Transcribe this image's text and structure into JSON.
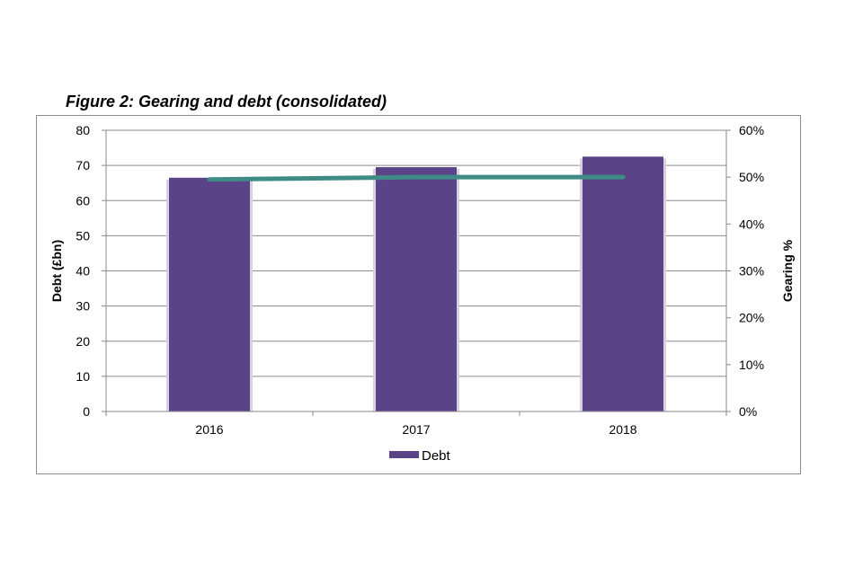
{
  "figure_title": "Figure 2: Gearing and debt (consolidated)",
  "colors": {
    "bar": "#5b4388",
    "bar_shadow": "#d6d2e2",
    "line": "#3f8c86",
    "grid": "#8a8a8a",
    "axis": "#8a8a8a",
    "text": "#000000",
    "frame": "#8c8c8c"
  },
  "chart_data": {
    "type": "bar",
    "title": "Figure 2: Gearing and debt (consolidated)",
    "categories": [
      "2016",
      "2017",
      "2018"
    ],
    "series": [
      {
        "name": "Debt",
        "type": "bar",
        "axis": "left",
        "values": [
          66.5,
          69.5,
          72.5
        ]
      },
      {
        "type": "line",
        "axis": "right",
        "values": [
          49.5,
          50.0,
          50.0
        ]
      }
    ],
    "ylabel": "Debt (£bn)",
    "y2label": "Gearing %",
    "ylim": [
      0,
      80
    ],
    "yticks": [
      "0",
      "10",
      "20",
      "30",
      "40",
      "50",
      "60",
      "70",
      "80"
    ],
    "y2lim": [
      0,
      60
    ],
    "y2ticks": [
      "0%",
      "10%",
      "20%",
      "30%",
      "40%",
      "50%",
      "60%"
    ],
    "grid": true,
    "legend": {
      "position": "bottom",
      "entries": [
        "Debt"
      ]
    }
  }
}
